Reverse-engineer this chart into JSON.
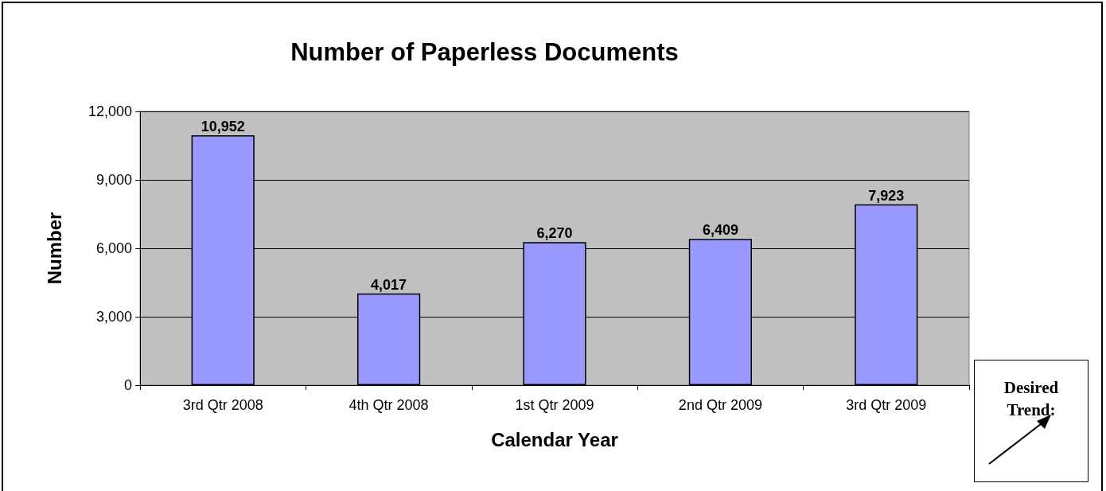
{
  "chart_data": {
    "type": "bar",
    "title": "Number of Paperless Documents",
    "xlabel": "Calendar Year",
    "ylabel": "Number",
    "categories": [
      "3rd Qtr 2008",
      "4th Qtr 2008",
      "1st Qtr 2009",
      "2nd Qtr 2009",
      "3rd Qtr 2009"
    ],
    "values": [
      10952,
      4017,
      6270,
      6409,
      7923
    ],
    "value_labels": [
      "10,952",
      "4,017",
      "6,270",
      "6,409",
      "7,923"
    ],
    "color": "#9999ff",
    "ylim": [
      0,
      12000
    ],
    "yticks": [
      {
        "value": 0,
        "label": "0"
      },
      {
        "value": 3000,
        "label": "3,000"
      },
      {
        "value": 6000,
        "label": "6,000"
      },
      {
        "value": 9000,
        "label": "9,000"
      },
      {
        "value": 12000,
        "label": "12,000"
      }
    ],
    "grid": "y",
    "annotations": [
      "Desired Trend:"
    ]
  }
}
